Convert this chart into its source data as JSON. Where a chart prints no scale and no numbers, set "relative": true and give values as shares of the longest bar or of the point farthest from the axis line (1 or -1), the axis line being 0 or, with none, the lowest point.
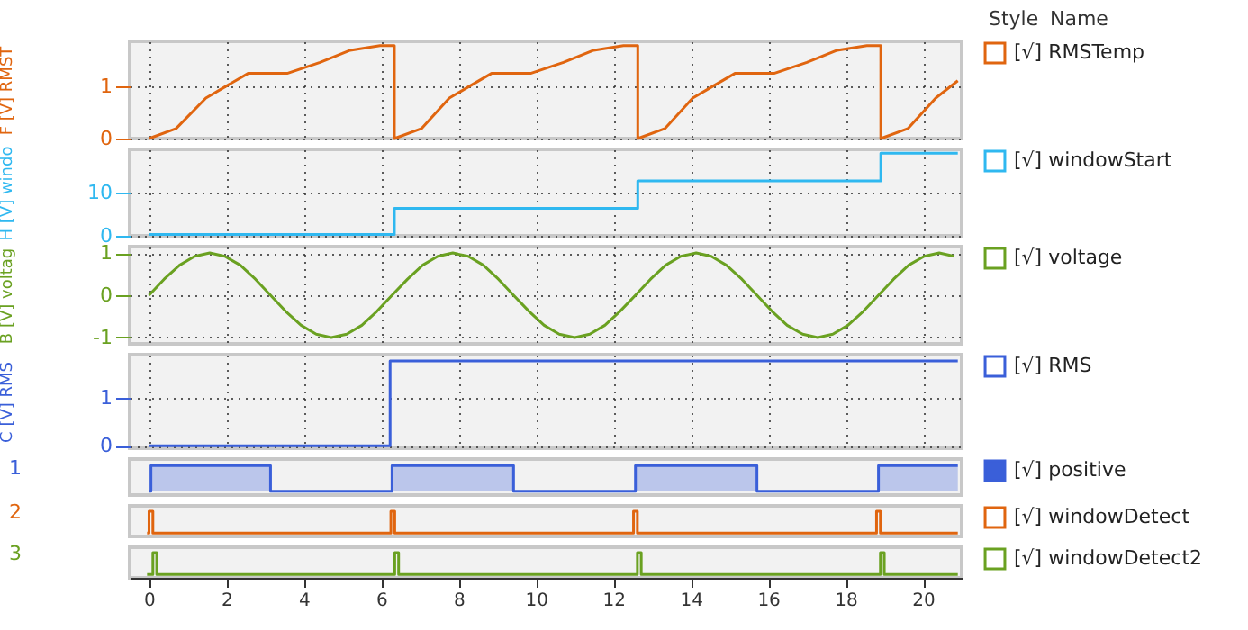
{
  "chart_data": [
    {
      "type": "line",
      "ylabel": "F [V] RMST",
      "xlim": [
        -0.5,
        21
      ],
      "xticks": [
        0,
        2,
        4,
        6,
        8,
        10,
        12,
        14,
        16,
        18,
        20
      ],
      "ylim": [
        0,
        1.85
      ],
      "yticks": [
        0,
        1
      ],
      "grid": true,
      "legend": "right",
      "tick_labels": "y",
      "annotations": [
        "Style",
        "Name"
      ],
      "series": [
        {
          "name": "[√] RMSTemp",
          "color": "#e0650f",
          "x": [
            0,
            0.7,
            1.47,
            2.0,
            2.56,
            3.57,
            4.42,
            5.2,
            5.97,
            6.34,
            6.34,
            7.04,
            7.76,
            8.29,
            8.85,
            9.86,
            10.71,
            11.49,
            12.26,
            12.63,
            12.63,
            13.33,
            14.05,
            14.58,
            15.14,
            16.15,
            17.0,
            17.78,
            18.55,
            18.91,
            18.91,
            19.61,
            20.33,
            20.9
          ],
          "values": [
            0,
            0.19,
            0.77,
            1.0,
            1.24,
            1.24,
            1.45,
            1.68,
            1.77,
            1.77,
            0,
            0.19,
            0.77,
            1.0,
            1.24,
            1.24,
            1.45,
            1.68,
            1.77,
            1.77,
            0,
            0.19,
            0.77,
            1.0,
            1.24,
            1.24,
            1.45,
            1.68,
            1.77,
            1.77,
            0,
            0.19,
            0.77,
            1.1
          ]
        }
      ]
    },
    {
      "type": "line",
      "ylabel": "H [V] windo",
      "xlim": [
        -0.5,
        21
      ],
      "xticks": [
        0,
        2,
        4,
        6,
        8,
        10,
        12,
        14,
        16,
        18,
        20
      ],
      "ylim": [
        0,
        19.8
      ],
      "yticks": [
        0,
        10
      ],
      "grid": true,
      "legend": "right",
      "tick_labels": "y",
      "series": [
        {
          "name": "[√] windowStart",
          "color": "#2fb8f0",
          "x": [
            0,
            6.34,
            6.34,
            12.63,
            12.63,
            18.91,
            18.91,
            20.9
          ],
          "values": [
            0.3,
            0.3,
            6.3,
            6.3,
            12.6,
            12.6,
            18.9,
            18.9
          ]
        }
      ]
    },
    {
      "type": "line",
      "ylabel": "B [V] voltag",
      "xlim": [
        -0.5,
        21
      ],
      "xticks": [
        0,
        2,
        4,
        6,
        8,
        10,
        12,
        14,
        16,
        18,
        20
      ],
      "ylim": [
        -1.15,
        1.15
      ],
      "yticks": [
        -1,
        0,
        1
      ],
      "grid": true,
      "legend": "right",
      "tick_labels": "y",
      "series": [
        {
          "name": "[√] voltage",
          "color": "#6aa121",
          "x": [
            0,
            0.39,
            0.79,
            1.18,
            1.57,
            1.96,
            2.36,
            2.75,
            3.14,
            3.53,
            3.93,
            4.32,
            4.71,
            5.11,
            5.5,
            5.89,
            6.28,
            6.68,
            7.07,
            7.46,
            7.85,
            8.25,
            8.64,
            9.03,
            9.42,
            9.82,
            10.21,
            10.6,
            11.0,
            11.39,
            11.78,
            12.17,
            12.57,
            12.96,
            13.35,
            13.74,
            14.14,
            14.53,
            14.92,
            15.32,
            15.71,
            16.1,
            16.49,
            16.89,
            17.28,
            17.67,
            18.06,
            18.46,
            18.85,
            19.24,
            19.63,
            20.03,
            20.42,
            20.81
          ],
          "values": [
            0,
            0.38,
            0.71,
            0.92,
            1,
            0.92,
            0.71,
            0.38,
            0,
            -0.38,
            -0.71,
            -0.92,
            -1,
            -0.92,
            -0.71,
            -0.38,
            0,
            0.38,
            0.71,
            0.92,
            1,
            0.92,
            0.71,
            0.38,
            0,
            -0.38,
            -0.71,
            -0.92,
            -1,
            -0.92,
            -0.71,
            -0.38,
            0,
            0.38,
            0.71,
            0.92,
            1,
            0.92,
            0.71,
            0.38,
            0,
            -0.38,
            -0.71,
            -0.92,
            -1,
            -0.92,
            -0.71,
            -0.38,
            0,
            0.38,
            0.71,
            0.92,
            1,
            0.92
          ]
        }
      ]
    },
    {
      "type": "line",
      "ylabel": "C [V] RMS",
      "xlim": [
        -0.5,
        21
      ],
      "xticks": [
        0,
        2,
        4,
        6,
        8,
        10,
        12,
        14,
        16,
        18,
        20
      ],
      "ylim": [
        -0.05,
        1.9
      ],
      "yticks": [
        0,
        1
      ],
      "grid": true,
      "legend": "right",
      "tick_labels": "y",
      "series": [
        {
          "name": "[√] RMS",
          "color": "#3a5fd9",
          "x": [
            0,
            6.23,
            6.23,
            20.9
          ],
          "values": [
            0,
            0,
            1.77,
            1.77
          ]
        }
      ]
    },
    {
      "type": "area",
      "ylabel": "1",
      "xlim": [
        -0.5,
        21
      ],
      "xticks": [
        0,
        2,
        4,
        6,
        8,
        10,
        12,
        14,
        16,
        18,
        20
      ],
      "relative": true,
      "legend": "right",
      "tick_labels": false,
      "series": [
        {
          "name": "[√] positive",
          "color": "#3a5fd9",
          "x": [
            0,
            0.05,
            0.05,
            3.14,
            3.14,
            6.28,
            6.28,
            9.42,
            9.42,
            12.57,
            12.57,
            15.71,
            15.71,
            18.85,
            18.85,
            20.9
          ],
          "values": [
            0,
            0,
            1,
            1,
            0,
            0,
            1,
            1,
            0,
            0,
            1,
            1,
            0,
            0,
            1,
            1
          ]
        }
      ]
    },
    {
      "type": "line",
      "ylabel": "2",
      "xlim": [
        -0.5,
        21
      ],
      "xticks": [
        0,
        2,
        4,
        6,
        8,
        10,
        12,
        14,
        16,
        18,
        20
      ],
      "relative": true,
      "legend": "right",
      "tick_labels": false,
      "series": [
        {
          "name": "[√] windowDetect",
          "color": "#e0650f",
          "x": [
            -0.05,
            0.0,
            0.0,
            0.1,
            0.1,
            6.25,
            6.25,
            6.35,
            6.35,
            12.52,
            12.52,
            12.62,
            12.62,
            18.8,
            18.8,
            18.9,
            18.9,
            20.9
          ],
          "values": [
            0,
            0,
            1,
            1,
            0,
            0,
            1,
            1,
            0,
            0,
            1,
            1,
            0,
            0,
            1,
            1,
            0,
            0
          ]
        }
      ]
    },
    {
      "type": "line",
      "ylabel": "3",
      "xlim": [
        -0.5,
        21
      ],
      "xticks": [
        0,
        2,
        4,
        6,
        8,
        10,
        12,
        14,
        16,
        18,
        20
      ],
      "relative": true,
      "legend": "right",
      "tick_labels": "x",
      "series": [
        {
          "name": "[√] windowDetect2",
          "color": "#6aa121",
          "x": [
            -0.05,
            0.1,
            0.1,
            0.2,
            0.2,
            6.35,
            6.35,
            6.45,
            6.45,
            12.62,
            12.62,
            12.72,
            12.72,
            18.9,
            18.9,
            19.0,
            19.0,
            20.9
          ],
          "values": [
            0,
            0,
            1,
            1,
            0,
            0,
            1,
            1,
            0,
            0,
            1,
            1,
            0,
            0,
            1,
            1,
            0,
            0
          ]
        }
      ]
    }
  ]
}
